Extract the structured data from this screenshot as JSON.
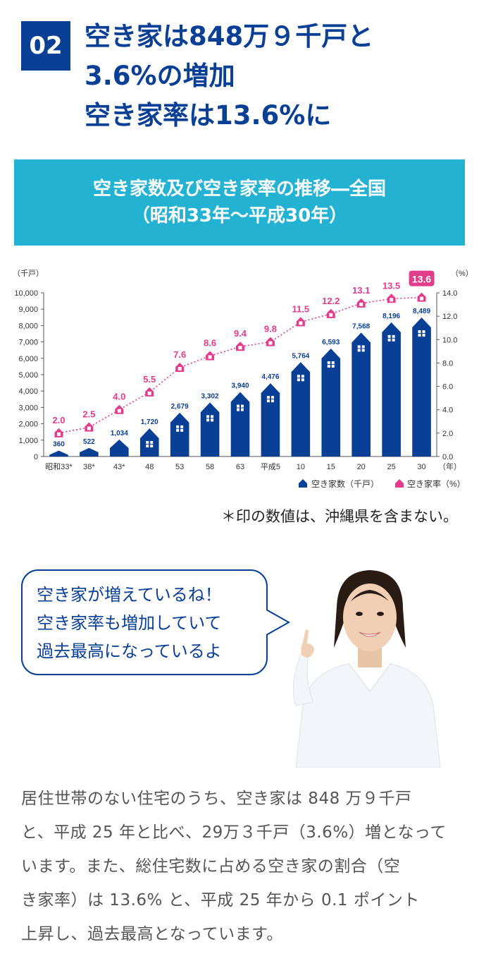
{
  "header": {
    "number": "02",
    "lines": [
      "空き家は848万９千戸と",
      "3.6%の増加",
      "空き家率は13.6%に"
    ]
  },
  "chart_title": {
    "line1": "空き家数及び空き家率の推移―全国",
    "line2": "（昭和33年～平成30年）"
  },
  "chart_data": {
    "type": "bar",
    "categories": [
      "昭和33*",
      "38*",
      "43*",
      "48",
      "53",
      "58",
      "63",
      "平成5",
      "10",
      "15",
      "20",
      "25",
      "30"
    ],
    "x_unit": "（年）",
    "series": [
      {
        "name": "空き家数（千戸）",
        "axis": "left",
        "values": [
          360,
          522,
          1034,
          1720,
          2679,
          3302,
          3940,
          4476,
          5764,
          6593,
          7568,
          8196,
          8489
        ],
        "value_labels": [
          "360",
          "522",
          "1,034",
          "1,720",
          "2,679",
          "3,302",
          "3,940",
          "4,476",
          "5,764",
          "6,593",
          "7,568",
          "8,196",
          "8,489"
        ]
      },
      {
        "name": "空き家率（%）",
        "axis": "right",
        "style": "line-dotted",
        "values": [
          2.0,
          2.5,
          4.0,
          5.5,
          7.6,
          8.6,
          9.4,
          9.8,
          11.5,
          12.2,
          13.1,
          13.5,
          13.6
        ],
        "value_labels": [
          "2.0",
          "2.5",
          "4.0",
          "5.5",
          "7.6",
          "8.6",
          "9.4",
          "9.8",
          "11.5",
          "12.2",
          "13.1",
          "13.5",
          "13.6"
        ]
      }
    ],
    "ylabel": "（千戸）",
    "ylim": [
      0,
      10000
    ],
    "yticks": [
      "0",
      "1,000",
      "2,000",
      "3,000",
      "4,000",
      "5,000",
      "6,000",
      "7,000",
      "8,000",
      "9,000",
      "10,000"
    ],
    "y2label": "（%）",
    "y2lim": [
      0,
      14
    ],
    "y2ticks": [
      "0.0",
      "2.0",
      "4.0",
      "6.0",
      "8.0",
      "10.0",
      "12.0",
      "14.0"
    ],
    "legend_position": "bottom-right",
    "colors": {
      "bar": "#0a3f96",
      "line": "#e23c8c"
    }
  },
  "note": "＊印の数値は、沖縄県を含まない。",
  "speech_bubble": {
    "lines": [
      "空き家が増えているね！",
      "空き家率も増加していて",
      "過去最高になっているよ"
    ]
  },
  "body": {
    "lines": [
      "居住世帯のない住宅のうち、空き家は 848 万９千戸",
      "と、平成 25 年と比べ、29万３千戸（3.6%）増となって",
      "います。また、総住宅数に占める空き家の割合（空",
      "き家率）は 13.6% と、平成 25 年から 0.1 ポイント",
      "上昇し、過去最高となっています。"
    ]
  }
}
